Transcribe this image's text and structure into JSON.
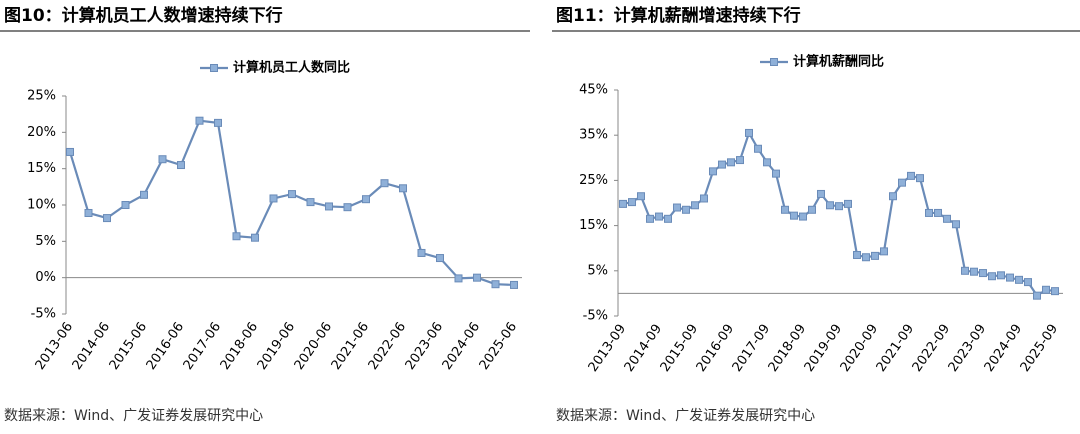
{
  "chart_data": [
    {
      "type": "line",
      "title": "图10：计算机员工人数增速持续下行",
      "source": "数据来源：Wind、广发证券发展研究中心",
      "categories": [
        "2013-06",
        null,
        "2014-06",
        null,
        "2015-06",
        null,
        "2016-06",
        null,
        "2017-06",
        null,
        "2018-06",
        null,
        "2019-06",
        null,
        "2020-06",
        null,
        "2021-06",
        null,
        "2022-06",
        null,
        "2023-06",
        null,
        "2024-06",
        null,
        "2025-06"
      ],
      "series": [
        {
          "name": "计算机员工人数同比",
          "color": "#6a8bb8",
          "values": [
            17.3,
            8.9,
            8.2,
            10.0,
            11.4,
            16.3,
            15.5,
            21.6,
            21.3,
            5.7,
            5.5,
            10.9,
            11.5,
            10.4,
            9.8,
            9.7,
            10.8,
            13.0,
            12.3,
            3.4,
            2.7,
            -0.1,
            0.0,
            -0.9,
            -1.0
          ]
        }
      ],
      "ylim": [
        -5,
        25
      ],
      "yticks": [
        {
          "value": 25,
          "label": "25%"
        },
        {
          "value": 20,
          "label": "20%"
        },
        {
          "value": 15,
          "label": "15%"
        },
        {
          "value": 10,
          "label": "10%"
        },
        {
          "value": 5,
          "label": "5%"
        },
        {
          "value": 0,
          "label": "0%"
        },
        {
          "value": -5,
          "label": "-5%"
        }
      ],
      "grid": false
    },
    {
      "type": "line",
      "title": "图11：计算机薪酬增速持续下行",
      "source": "数据来源：Wind、广发证券发展研究中心",
      "categories": [
        "2013-09",
        null,
        null,
        null,
        "2014-09",
        null,
        null,
        null,
        "2015-09",
        null,
        null,
        null,
        "2016-09",
        null,
        null,
        null,
        "2017-09",
        null,
        null,
        null,
        "2018-09",
        null,
        null,
        null,
        "2019-09",
        null,
        null,
        null,
        "2020-09",
        null,
        null,
        null,
        "2021-09",
        null,
        null,
        null,
        "2022-09",
        null,
        null,
        null,
        "2023-09",
        null,
        null,
        null,
        "2024-09",
        null,
        null,
        null,
        "2025-09"
      ],
      "series": [
        {
          "name": "计算机薪酬同比",
          "color": "#6a8bb8",
          "values": [
            19.8,
            20.2,
            21.5,
            16.5,
            17.0,
            16.5,
            19.0,
            18.5,
            19.5,
            21.0,
            27.0,
            28.5,
            29.0,
            29.5,
            35.5,
            32.0,
            29.0,
            26.5,
            18.5,
            17.2,
            17.0,
            18.5,
            22.0,
            19.5,
            19.3,
            19.8,
            8.5,
            8.0,
            8.3,
            9.3,
            21.5,
            24.5,
            26.0,
            25.5,
            17.8,
            17.8,
            16.5,
            15.3,
            5.0,
            4.8,
            4.5,
            3.8,
            4.0,
            3.5,
            3.0,
            2.5,
            -0.5,
            0.8,
            0.5
          ]
        }
      ],
      "ylim": [
        -5,
        45
      ],
      "yticks": [
        {
          "value": 45,
          "label": "45%"
        },
        {
          "value": 35,
          "label": "35%"
        },
        {
          "value": 25,
          "label": "25%"
        },
        {
          "value": 15,
          "label": "15%"
        },
        {
          "value": 5,
          "label": "5%"
        },
        {
          "value": -5,
          "label": "-5%"
        }
      ],
      "grid": false
    }
  ]
}
